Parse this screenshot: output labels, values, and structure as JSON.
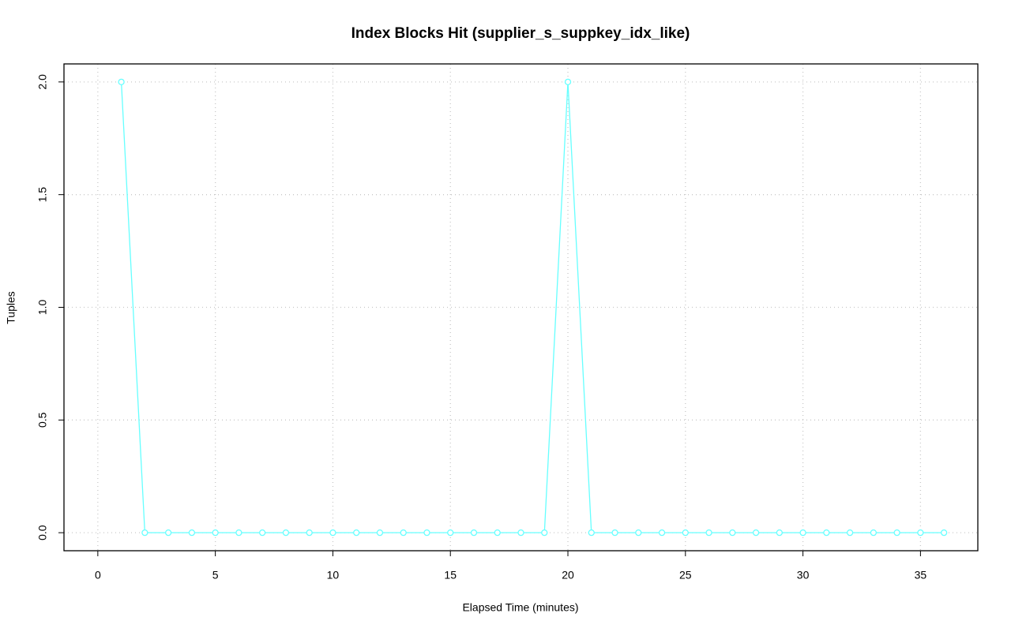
{
  "chart_data": {
    "type": "line",
    "title": "Index Blocks Hit (supplier_s_suppkey_idx_like)",
    "x_label": "Elapsed Time (minutes)",
    "y_label": "Tuples",
    "x": [
      1,
      2,
      3,
      4,
      5,
      6,
      7,
      8,
      9,
      10,
      11,
      12,
      13,
      14,
      15,
      16,
      17,
      18,
      19,
      20,
      21,
      22,
      23,
      24,
      25,
      26,
      27,
      28,
      29,
      30,
      31,
      32,
      33,
      34,
      35,
      36
    ],
    "series": [
      {
        "color": "#66ffff",
        "values": [
          2,
          0,
          0,
          0,
          0,
          0,
          0,
          0,
          0,
          0,
          0,
          0,
          0,
          0,
          0,
          0,
          0,
          0,
          0,
          2,
          0,
          0,
          0,
          0,
          0,
          0,
          0,
          0,
          0,
          0,
          0,
          0,
          0,
          0,
          0,
          0
        ]
      }
    ],
    "xlim": [
      -1.44,
      37.44
    ],
    "ylim": [
      -0.08,
      2.08
    ],
    "xticks": [
      0,
      5,
      10,
      15,
      20,
      25,
      30,
      35
    ],
    "yticks": [
      {
        "value": 0,
        "label": "0.0"
      },
      {
        "value": 0.5,
        "label": "0.5"
      },
      {
        "value": 1,
        "label": "1.0"
      },
      {
        "value": 1.5,
        "label": "1.5"
      },
      {
        "value": 2,
        "label": "2.0"
      }
    ],
    "grid": true
  }
}
